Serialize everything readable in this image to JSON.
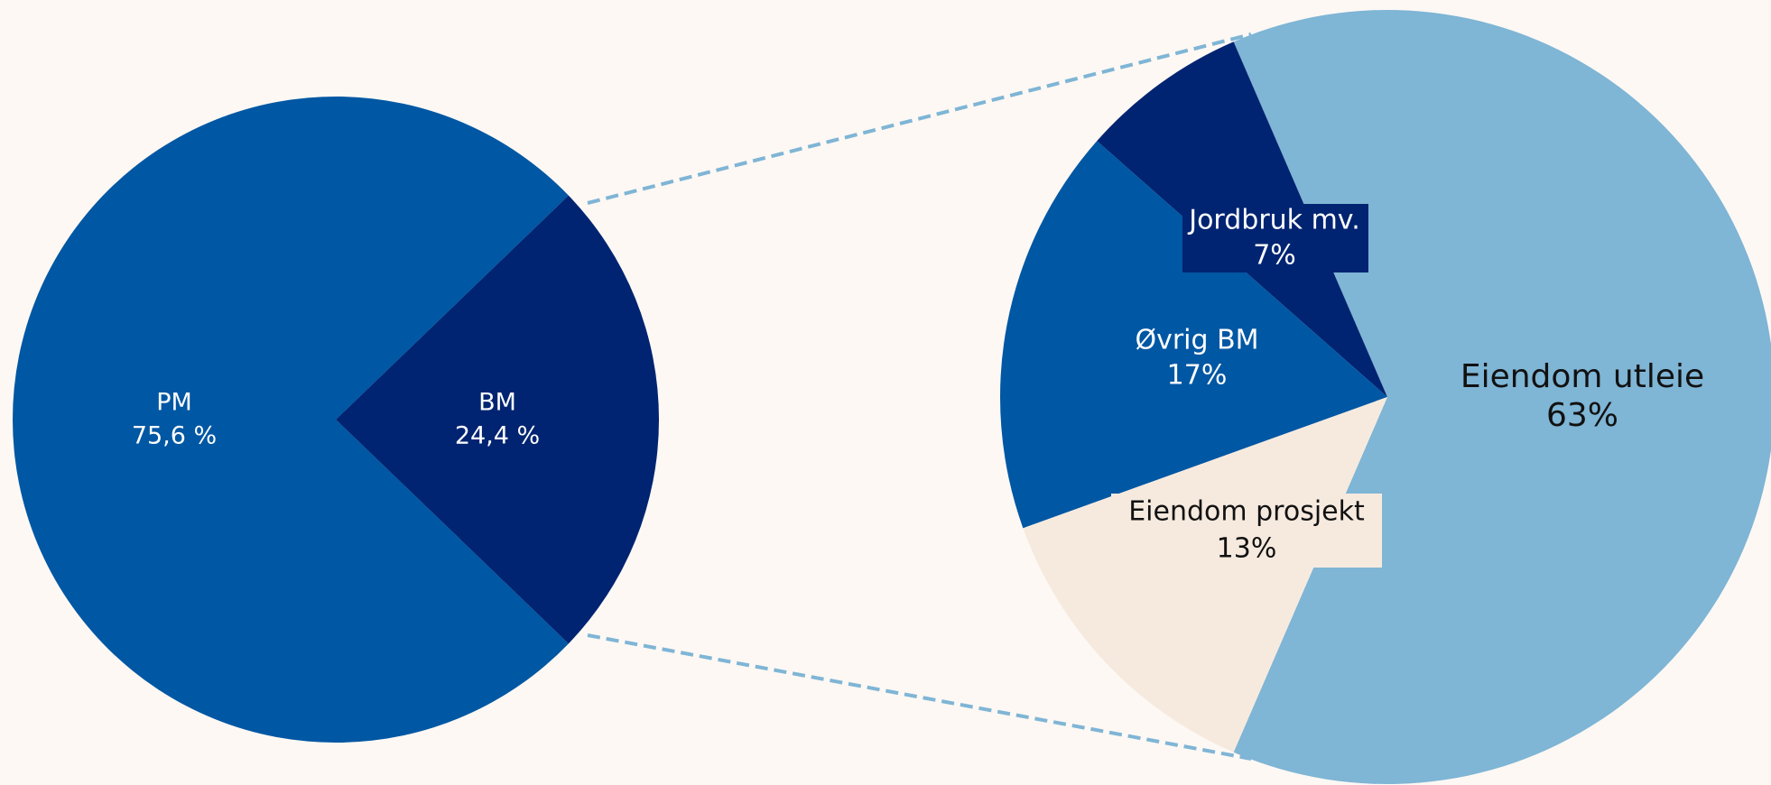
{
  "chart_data": [
    {
      "type": "pie",
      "categories": [
        "PM",
        "BM"
      ],
      "values": [
        75.6,
        24.4
      ],
      "value_labels": [
        "75,6 %",
        "24,4 %"
      ],
      "colors": [
        "#0057a3",
        "#002472"
      ]
    },
    {
      "type": "pie",
      "categories": [
        "Eiendom utleie",
        "Jordbruk mv.",
        "Øvrig BM",
        "Eiendom prosjekt"
      ],
      "values": [
        63,
        7,
        17,
        13
      ],
      "value_labels": [
        "63%",
        "7%",
        "17%",
        "13%"
      ],
      "colors": [
        "#7fb5d5",
        "#002472",
        "#0057a3",
        "#f6eadf"
      ]
    }
  ]
}
